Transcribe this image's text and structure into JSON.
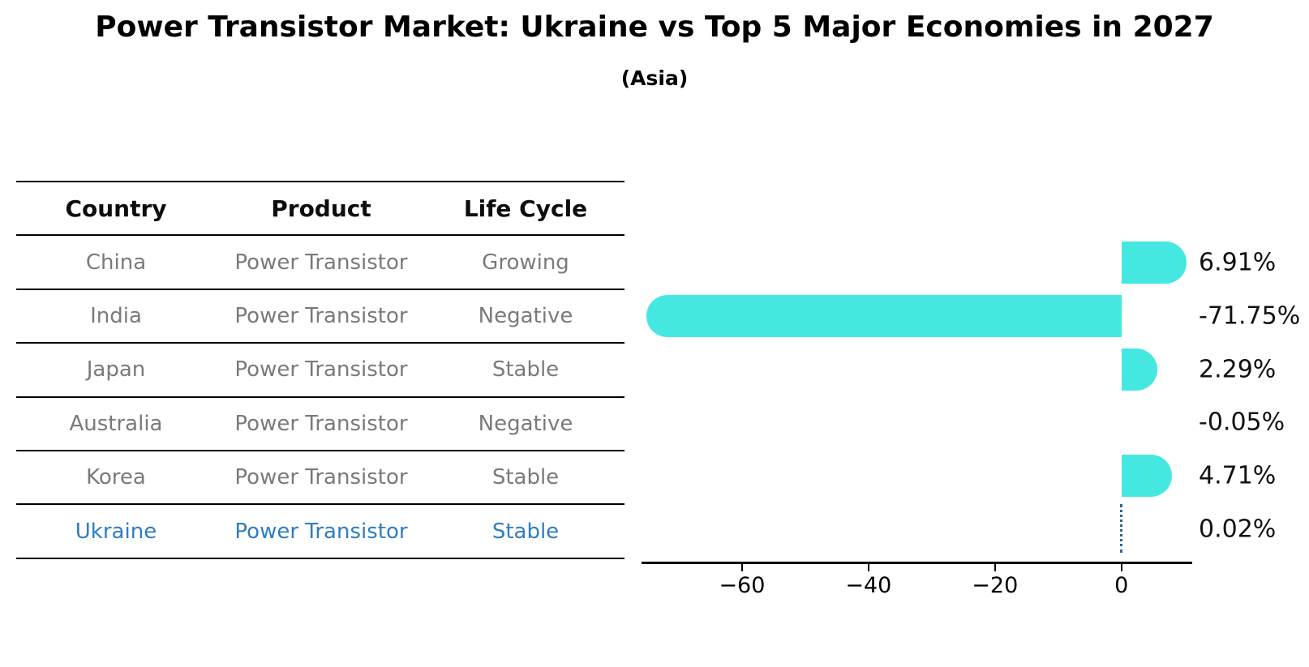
{
  "figure": {
    "title": "Power Transistor Market: Ukraine vs Top 5 Major Economies in 2027",
    "subtitle": "(Asia)"
  },
  "table": {
    "headers": [
      "Country",
      "Product",
      "Life Cycle"
    ],
    "rows": [
      {
        "country": "China",
        "product": "Power Transistor",
        "life_cycle": "Growing",
        "highlight": false
      },
      {
        "country": "India",
        "product": "Power Transistor",
        "life_cycle": "Negative",
        "highlight": false
      },
      {
        "country": "Japan",
        "product": "Power Transistor",
        "life_cycle": "Stable",
        "highlight": false
      },
      {
        "country": "Australia",
        "product": "Power Transistor",
        "life_cycle": "Negative",
        "highlight": false
      },
      {
        "country": "Korea",
        "product": "Power Transistor",
        "life_cycle": "Stable",
        "highlight": false
      },
      {
        "country": "Ukraine",
        "product": "Power Transistor",
        "life_cycle": "Stable",
        "highlight": true
      }
    ]
  },
  "chart_data": {
    "type": "bar",
    "orientation": "horizontal",
    "title": "Power Transistor Market: Ukraine vs Top 5 Major Economies in 2027",
    "subtitle": "(Asia)",
    "categories": [
      "China",
      "India",
      "Japan",
      "Australia",
      "Korea",
      "Ukraine"
    ],
    "values": [
      6.91,
      -71.75,
      2.29,
      -0.05,
      4.71,
      0.02
    ],
    "value_labels": [
      "6.91%",
      "-71.75%",
      "2.29%",
      "-0.05%",
      "4.71%",
      "0.02%"
    ],
    "xlim": [
      -75.9,
      11.2
    ],
    "xticks": [
      -60,
      -40,
      -20,
      0
    ],
    "xtick_labels": [
      "−60",
      "−40",
      "−20",
      "0"
    ],
    "grid": false,
    "legend": null,
    "bar_color": "#45E8E0",
    "highlight_index": 5,
    "highlight_marker": "dotted-line-at-zero",
    "marker_color": "#2F6399"
  },
  "colors": {
    "title_text": "#000000",
    "table_header_text": "#0d0d0d",
    "table_cell_text": "#7a7a7a",
    "highlight_text": "#2E7DC1",
    "axis": "#000000",
    "value_label_text": "#111111"
  }
}
